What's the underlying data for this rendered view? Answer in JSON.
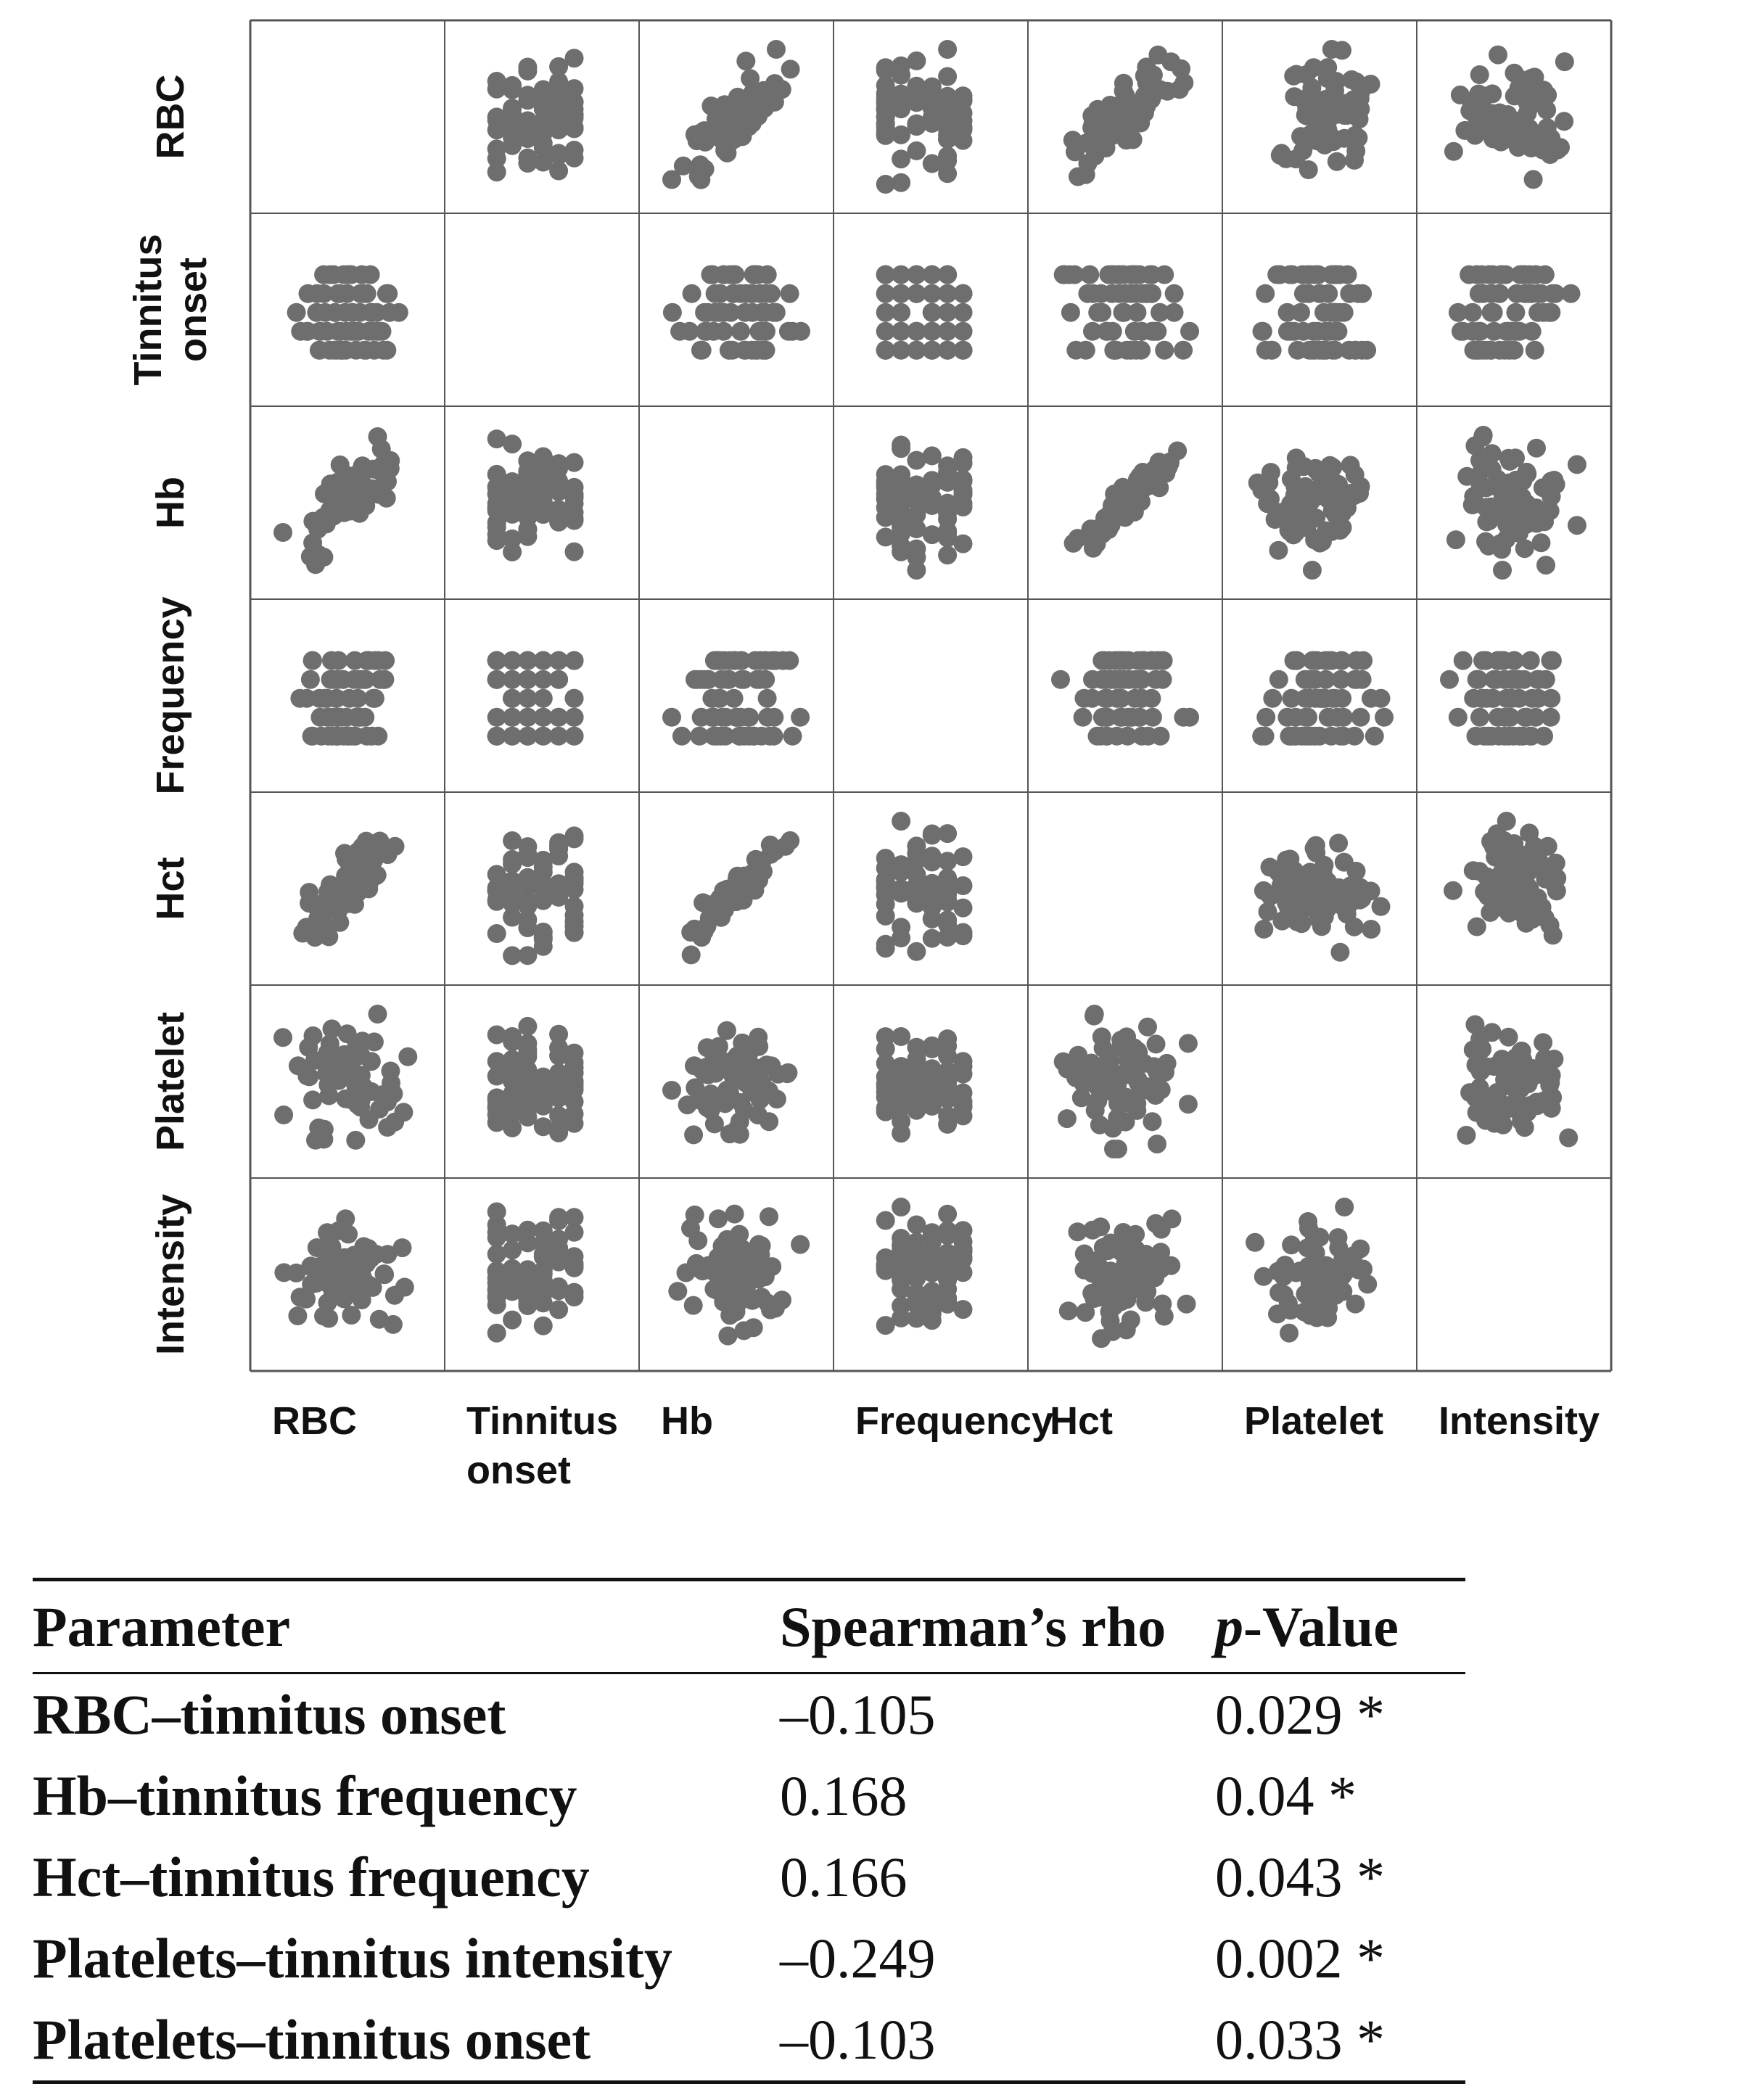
{
  "chart_data": {
    "type": "scatter",
    "title": "",
    "variables": [
      "RBC",
      "Tinnitus onset",
      "Hb",
      "Frequency",
      "Hct",
      "Platelet",
      "Intensity"
    ],
    "row_labels": [
      [
        "RBC"
      ],
      [
        "Tinnitus",
        "onset"
      ],
      [
        "Hb"
      ],
      [
        "Frequency"
      ],
      [
        "Hct"
      ],
      [
        "Platelet"
      ],
      [
        "Intensity"
      ]
    ],
    "column_labels": [
      [
        "RBC"
      ],
      [
        "Tinnitus",
        "onset"
      ],
      [
        "Hb"
      ],
      [
        "Frequency"
      ],
      [
        "Hct"
      ],
      [
        "Platelet"
      ],
      [
        "Intensity"
      ]
    ],
    "diagonal": "empty",
    "grid": true,
    "point_color": "#6e6e6e",
    "pairwise_spearman_rho": [
      {
        "pair": [
          "RBC",
          "Hb"
        ],
        "relation": "strong positive"
      },
      {
        "pair": [
          "RBC",
          "Hct"
        ],
        "relation": "strong positive"
      },
      {
        "pair": [
          "Hb",
          "Hct"
        ],
        "relation": "very strong positive"
      }
    ]
  },
  "table": {
    "headers": {
      "parameter": "Parameter",
      "rho": "Spearman’s rho",
      "p_italic": "p",
      "p_rest": "-Value"
    },
    "rows": [
      {
        "parameter": "RBC–tinnitus onset",
        "rho": "–0.105",
        "p": "0.029 *"
      },
      {
        "parameter": "Hb–tinnitus frequency",
        "rho": "0.168",
        "p": "0.04 *"
      },
      {
        "parameter": "Hct–tinnitus frequency",
        "rho": "0.166",
        "p": "0.043 *"
      },
      {
        "parameter": "Platelets–tinnitus intensity",
        "rho": "–0.249",
        "p": "0.002 *"
      },
      {
        "parameter": "Platelets–tinnitus onset",
        "rho": "–0.103",
        "p": "0.033 *"
      }
    ]
  }
}
